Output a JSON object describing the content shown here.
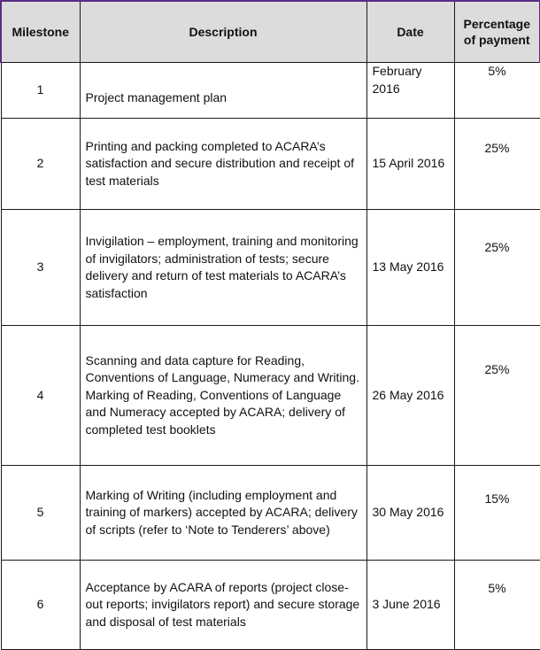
{
  "table": {
    "headers": {
      "milestone": "Milestone",
      "description": "Description",
      "date": "Date",
      "percentage": "Percentage of payment"
    },
    "rows": [
      {
        "milestone": "1",
        "description": "Project management plan",
        "date": "February 2016",
        "percentage": "5%"
      },
      {
        "milestone": "2",
        "description": "Printing and packing completed to ACARA’s satisfaction and secure distribution and receipt of test materials",
        "date": "15 April 2016",
        "percentage": "25%"
      },
      {
        "milestone": "3",
        "description": "Invigilation – employment, training and monitoring of invigilators; administration of tests; secure delivery and return of test materials to ACARA’s satisfaction",
        "date": "13 May 2016",
        "percentage": "25%"
      },
      {
        "milestone": "4",
        "description": "Scanning and data capture for Reading, Conventions of Language, Numeracy and Writing. Marking of Reading, Conventions of Language and Numeracy accepted by ACARA; delivery of completed test booklets",
        "date": "26 May 2016",
        "percentage": "25%"
      },
      {
        "milestone": "5",
        "description": "Marking of Writing (including employment and training of markers) accepted by ACARA; delivery of scripts (refer to ‘Note to Tenderers’ above)",
        "date": "30 May 2016",
        "percentage": "15%"
      },
      {
        "milestone": "6",
        "description": "Acceptance by ACARA of reports (project close-out reports; invigilators report) and secure storage and disposal of test materials",
        "date": "3 June 2016",
        "percentage": "5%"
      }
    ]
  }
}
